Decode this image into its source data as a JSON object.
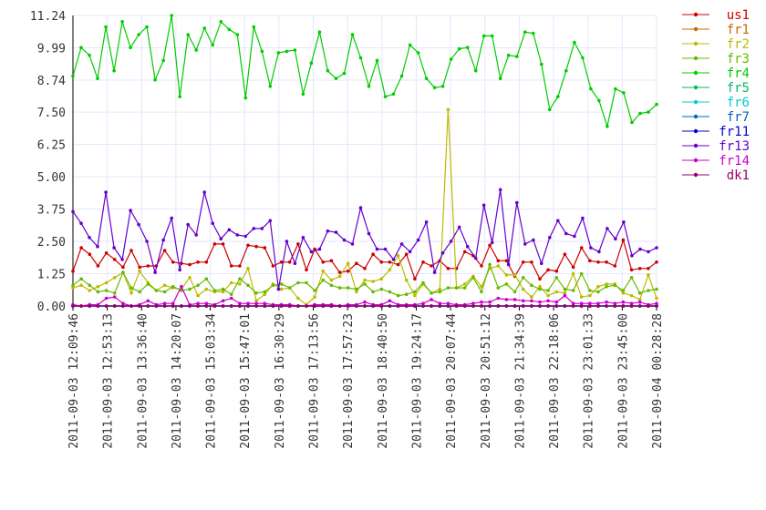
{
  "chart_data": {
    "type": "line",
    "title": "",
    "xlabel": "",
    "ylabel": "",
    "ylim": [
      0,
      11.24
    ],
    "yticks": [
      "11.24",
      "9.99",
      "8.74",
      "7.50",
      "6.25",
      "5.00",
      "3.75",
      "2.50",
      "1.25",
      "0.00"
    ],
    "ytick_values": [
      11.24,
      9.99,
      8.74,
      7.5,
      6.25,
      5.0,
      3.75,
      2.5,
      1.25,
      0.0
    ],
    "x_labels": [
      "2011-09-03 12:09:46",
      "2011-09-03 12:53:13",
      "2011-09-03 13:36:40",
      "2011-09-03 14:20:07",
      "2011-09-03 15:03:34",
      "2011-09-03 15:47:01",
      "2011-09-03 16:30:29",
      "2011-09-03 17:13:56",
      "2011-09-03 17:57:23",
      "2011-09-03 18:40:50",
      "2011-09-03 19:24:17",
      "2011-09-03 20:07:44",
      "2011-09-03 20:51:12",
      "2011-09-03 21:34:39",
      "2011-09-03 22:18:06",
      "2011-09-03 23:01:33",
      "2011-09-03 23:45:00",
      "2011-09-04 00:28:28"
    ],
    "grid": true,
    "legend_position": "right",
    "series": [
      {
        "name": "us1",
        "color": "#cc0000",
        "values": [
          1.35,
          2.25,
          2.0,
          1.55,
          2.05,
          1.8,
          1.5,
          2.15,
          1.5,
          1.55,
          1.55,
          2.15,
          1.7,
          1.65,
          1.6,
          1.7,
          1.7,
          2.4,
          2.4,
          1.55,
          1.55,
          2.35,
          2.3,
          2.25,
          1.55,
          1.7,
          1.7,
          2.4,
          1.4,
          2.2,
          1.7,
          1.75,
          1.3,
          1.35,
          1.65,
          1.45,
          2.0,
          1.7,
          1.7,
          1.6,
          2.0,
          1.05,
          1.7,
          1.55,
          1.75,
          1.45,
          1.45,
          2.1,
          1.95,
          1.55,
          2.35,
          1.75,
          1.75,
          1.15,
          1.7,
          1.7,
          1.05,
          1.4,
          1.35,
          2.0,
          1.5,
          2.25,
          1.75,
          1.7,
          1.7,
          1.55,
          2.55,
          1.4,
          1.45,
          1.45,
          1.7
        ]
      },
      {
        "name": "fr1",
        "color": "#cc6600",
        "values": [
          0,
          0,
          0,
          0,
          0,
          0,
          0,
          0,
          0,
          0,
          0,
          0,
          0,
          0,
          0,
          0,
          0,
          0,
          0,
          0,
          0,
          0,
          0,
          0,
          0,
          0,
          0,
          0,
          0,
          0,
          0,
          0,
          0,
          0,
          0,
          0,
          0,
          0,
          0,
          0,
          0,
          0,
          0,
          0,
          0,
          0,
          0,
          0,
          0,
          0,
          0,
          0,
          0,
          0,
          0,
          0,
          0,
          0,
          0,
          0,
          0,
          0,
          0,
          0,
          0,
          0,
          0,
          0,
          0,
          0,
          0
        ]
      },
      {
        "name": "fr2",
        "color": "#bbbb00",
        "values": [
          0.7,
          0.8,
          0.6,
          0.75,
          0.9,
          1.1,
          1.3,
          0.5,
          1.35,
          0.9,
          0.6,
          0.8,
          0.7,
          0.65,
          1.1,
          0.4,
          0.65,
          0.55,
          0.55,
          0.9,
          0.85,
          1.45,
          0.2,
          0.45,
          0.85,
          0.65,
          0.7,
          0.3,
          0.05,
          0.35,
          1.35,
          1.0,
          1.15,
          1.65,
          0.55,
          1.0,
          0.95,
          1.05,
          1.4,
          1.95,
          1.0,
          0.4,
          0.85,
          0.5,
          0.65,
          7.6,
          0.7,
          0.85,
          1.15,
          0.75,
          1.45,
          1.55,
          1.2,
          1.2,
          0.65,
          0.35,
          0.75,
          0.4,
          0.55,
          0.5,
          1.25,
          0.35,
          0.4,
          0.75,
          0.85,
          0.85,
          0.5,
          0.4,
          0.25,
          1.2,
          0.3
        ]
      },
      {
        "name": "fr3",
        "color": "#66bb00",
        "values": [
          0.8,
          1.05,
          0.8,
          0.55,
          0.6,
          0.5,
          1.3,
          0.7,
          0.55,
          0.85,
          0.6,
          0.55,
          0.75,
          0.6,
          0.65,
          0.8,
          1.05,
          0.6,
          0.65,
          0.45,
          1.05,
          0.8,
          0.5,
          0.55,
          0.8,
          0.85,
          0.7,
          0.9,
          0.9,
          0.6,
          1.0,
          0.8,
          0.7,
          0.7,
          0.65,
          0.85,
          0.55,
          0.65,
          0.55,
          0.4,
          0.45,
          0.55,
          0.9,
          0.5,
          0.55,
          0.7,
          0.7,
          0.7,
          1.1,
          0.55,
          1.6,
          0.7,
          0.85,
          0.55,
          1.1,
          0.8,
          0.65,
          0.6,
          1.1,
          0.65,
          0.6,
          1.25,
          0.6,
          0.55,
          0.75,
          0.8,
          0.6,
          1.1,
          0.5,
          0.6,
          0.65
        ]
      },
      {
        "name": "fr4",
        "color": "#00cc00",
        "values": [
          8.9,
          10.0,
          9.7,
          8.8,
          10.8,
          9.1,
          11.0,
          10.0,
          10.5,
          10.8,
          8.75,
          9.5,
          11.24,
          8.1,
          10.5,
          9.9,
          10.75,
          10.1,
          11.0,
          10.7,
          10.5,
          8.05,
          10.8,
          9.85,
          8.5,
          9.8,
          9.85,
          9.9,
          8.2,
          9.4,
          10.6,
          9.1,
          8.8,
          9.0,
          10.5,
          9.6,
          8.5,
          9.5,
          8.1,
          8.2,
          8.9,
          10.1,
          9.8,
          8.8,
          8.45,
          8.5,
          9.55,
          9.95,
          10.0,
          9.1,
          10.45,
          10.45,
          8.8,
          9.7,
          9.65,
          10.6,
          10.55,
          9.35,
          7.6,
          8.1,
          9.1,
          10.2,
          9.6,
          8.4,
          7.95,
          6.95,
          8.4,
          8.25,
          7.1,
          7.45,
          7.5,
          7.8
        ]
      },
      {
        "name": "fr5",
        "color": "#00bb66",
        "values": [
          0,
          0,
          0,
          0,
          0,
          0,
          0,
          0,
          0,
          0,
          0,
          0,
          0,
          0,
          0,
          0,
          0,
          0,
          0,
          0,
          0,
          0,
          0,
          0,
          0,
          0,
          0,
          0,
          0,
          0,
          0,
          0,
          0,
          0,
          0,
          0,
          0,
          0,
          0,
          0,
          0,
          0,
          0,
          0,
          0,
          0,
          0,
          0,
          0,
          0,
          0,
          0,
          0,
          0,
          0,
          0,
          0,
          0,
          0,
          0,
          0,
          0,
          0,
          0,
          0,
          0,
          0,
          0,
          0,
          0,
          0
        ]
      },
      {
        "name": "fr6",
        "color": "#00cccc",
        "values": [
          0,
          0,
          0,
          0,
          0,
          0,
          0,
          0,
          0,
          0,
          0,
          0,
          0,
          0,
          0,
          0,
          0,
          0,
          0,
          0,
          0,
          0,
          0,
          0,
          0,
          0,
          0,
          0,
          0,
          0,
          0,
          0,
          0,
          0,
          0,
          0,
          0,
          0,
          0,
          0,
          0,
          0,
          0,
          0,
          0,
          0,
          0,
          0,
          0,
          0,
          0,
          0,
          0,
          0,
          0,
          0,
          0,
          0,
          0,
          0,
          0,
          0,
          0,
          0,
          0,
          0,
          0,
          0,
          0,
          0,
          0
        ]
      },
      {
        "name": "fr7",
        "color": "#0066bb",
        "values": [
          0,
          0,
          0,
          0,
          0,
          0,
          0,
          0,
          0,
          0,
          0,
          0,
          0,
          0,
          0,
          0,
          0,
          0,
          0,
          0,
          0,
          0,
          0,
          0,
          0,
          0,
          0,
          0,
          0,
          0,
          0,
          0,
          0,
          0,
          0,
          0,
          0,
          0,
          0,
          0,
          0,
          0,
          0,
          0,
          0,
          0,
          0,
          0,
          0,
          0,
          0,
          0,
          0,
          0,
          0,
          0,
          0,
          0,
          0,
          0,
          0,
          0,
          0,
          0,
          0,
          0,
          0,
          0,
          0,
          0,
          0
        ]
      },
      {
        "name": "fr11",
        "color": "#0000cc",
        "values": [
          0,
          0,
          0,
          0,
          0,
          0,
          0,
          0,
          0,
          0,
          0,
          0,
          0,
          0,
          0,
          0,
          0,
          0,
          0,
          0,
          0,
          0,
          0,
          0,
          0,
          0,
          0,
          0,
          0,
          0,
          0,
          0,
          0,
          0,
          0,
          0,
          0,
          0,
          0,
          0,
          0,
          0,
          0,
          0,
          0,
          0,
          0,
          0,
          0,
          0,
          0,
          0,
          0,
          0,
          0,
          0,
          0,
          0,
          0,
          0,
          0,
          0,
          0,
          0,
          0,
          0,
          0,
          0,
          0,
          0,
          0
        ]
      },
      {
        "name": "fr13",
        "color": "#6600cc",
        "values": [
          3.65,
          3.2,
          2.65,
          2.3,
          4.4,
          2.25,
          1.8,
          3.7,
          3.15,
          2.5,
          1.3,
          2.55,
          3.4,
          1.4,
          3.15,
          2.75,
          4.4,
          3.2,
          2.6,
          2.95,
          2.75,
          2.7,
          3.0,
          3.0,
          3.3,
          0.65,
          2.5,
          1.65,
          2.65,
          2.1,
          2.2,
          2.9,
          2.85,
          2.55,
          2.4,
          3.8,
          2.8,
          2.2,
          2.2,
          1.8,
          2.4,
          2.1,
          2.55,
          3.25,
          1.3,
          2.05,
          2.5,
          3.05,
          2.3,
          1.85,
          3.9,
          2.45,
          4.5,
          1.6,
          4.0,
          2.4,
          2.55,
          1.65,
          2.65,
          3.3,
          2.8,
          2.7,
          3.4,
          2.25,
          2.1,
          3.0,
          2.6,
          3.25,
          1.95,
          2.2,
          2.1,
          2.25
        ]
      },
      {
        "name": "fr14",
        "color": "#cc00cc",
        "values": [
          0.05,
          0,
          0.05,
          0.05,
          0.3,
          0.35,
          0.1,
          0,
          0.05,
          0.2,
          0.05,
          0.1,
          0.1,
          0.75,
          0.05,
          0.1,
          0.1,
          0.05,
          0.2,
          0.3,
          0.1,
          0.1,
          0.1,
          0.1,
          0.05,
          0.05,
          0.05,
          0,
          0,
          0.05,
          0.05,
          0.05,
          0,
          0.05,
          0.05,
          0.15,
          0.05,
          0.05,
          0.2,
          0.05,
          0.05,
          0.05,
          0.1,
          0.25,
          0.1,
          0.1,
          0.05,
          0.05,
          0.1,
          0.15,
          0.15,
          0.3,
          0.25,
          0.25,
          0.2,
          0.2,
          0.15,
          0.2,
          0.15,
          0.4,
          0.1,
          0.1,
          0.1,
          0.1,
          0.15,
          0.1,
          0.15,
          0.1,
          0.15,
          0.05,
          0.1
        ]
      },
      {
        "name": "dk1",
        "color": "#990066",
        "values": [
          0,
          0,
          0,
          0,
          0,
          0,
          0,
          0,
          0,
          0,
          0,
          0,
          0,
          0,
          0,
          0,
          0,
          0,
          0,
          0,
          0,
          0,
          0,
          0,
          0,
          0,
          0,
          0,
          0,
          0,
          0,
          0,
          0,
          0,
          0,
          0,
          0,
          0,
          0,
          0,
          0,
          0,
          0,
          0,
          0,
          0,
          0,
          0,
          0,
          0,
          0,
          0,
          0,
          0,
          0,
          0,
          0,
          0,
          0,
          0,
          0,
          0,
          0,
          0,
          0,
          0,
          0,
          0,
          0,
          0,
          0
        ]
      }
    ]
  }
}
